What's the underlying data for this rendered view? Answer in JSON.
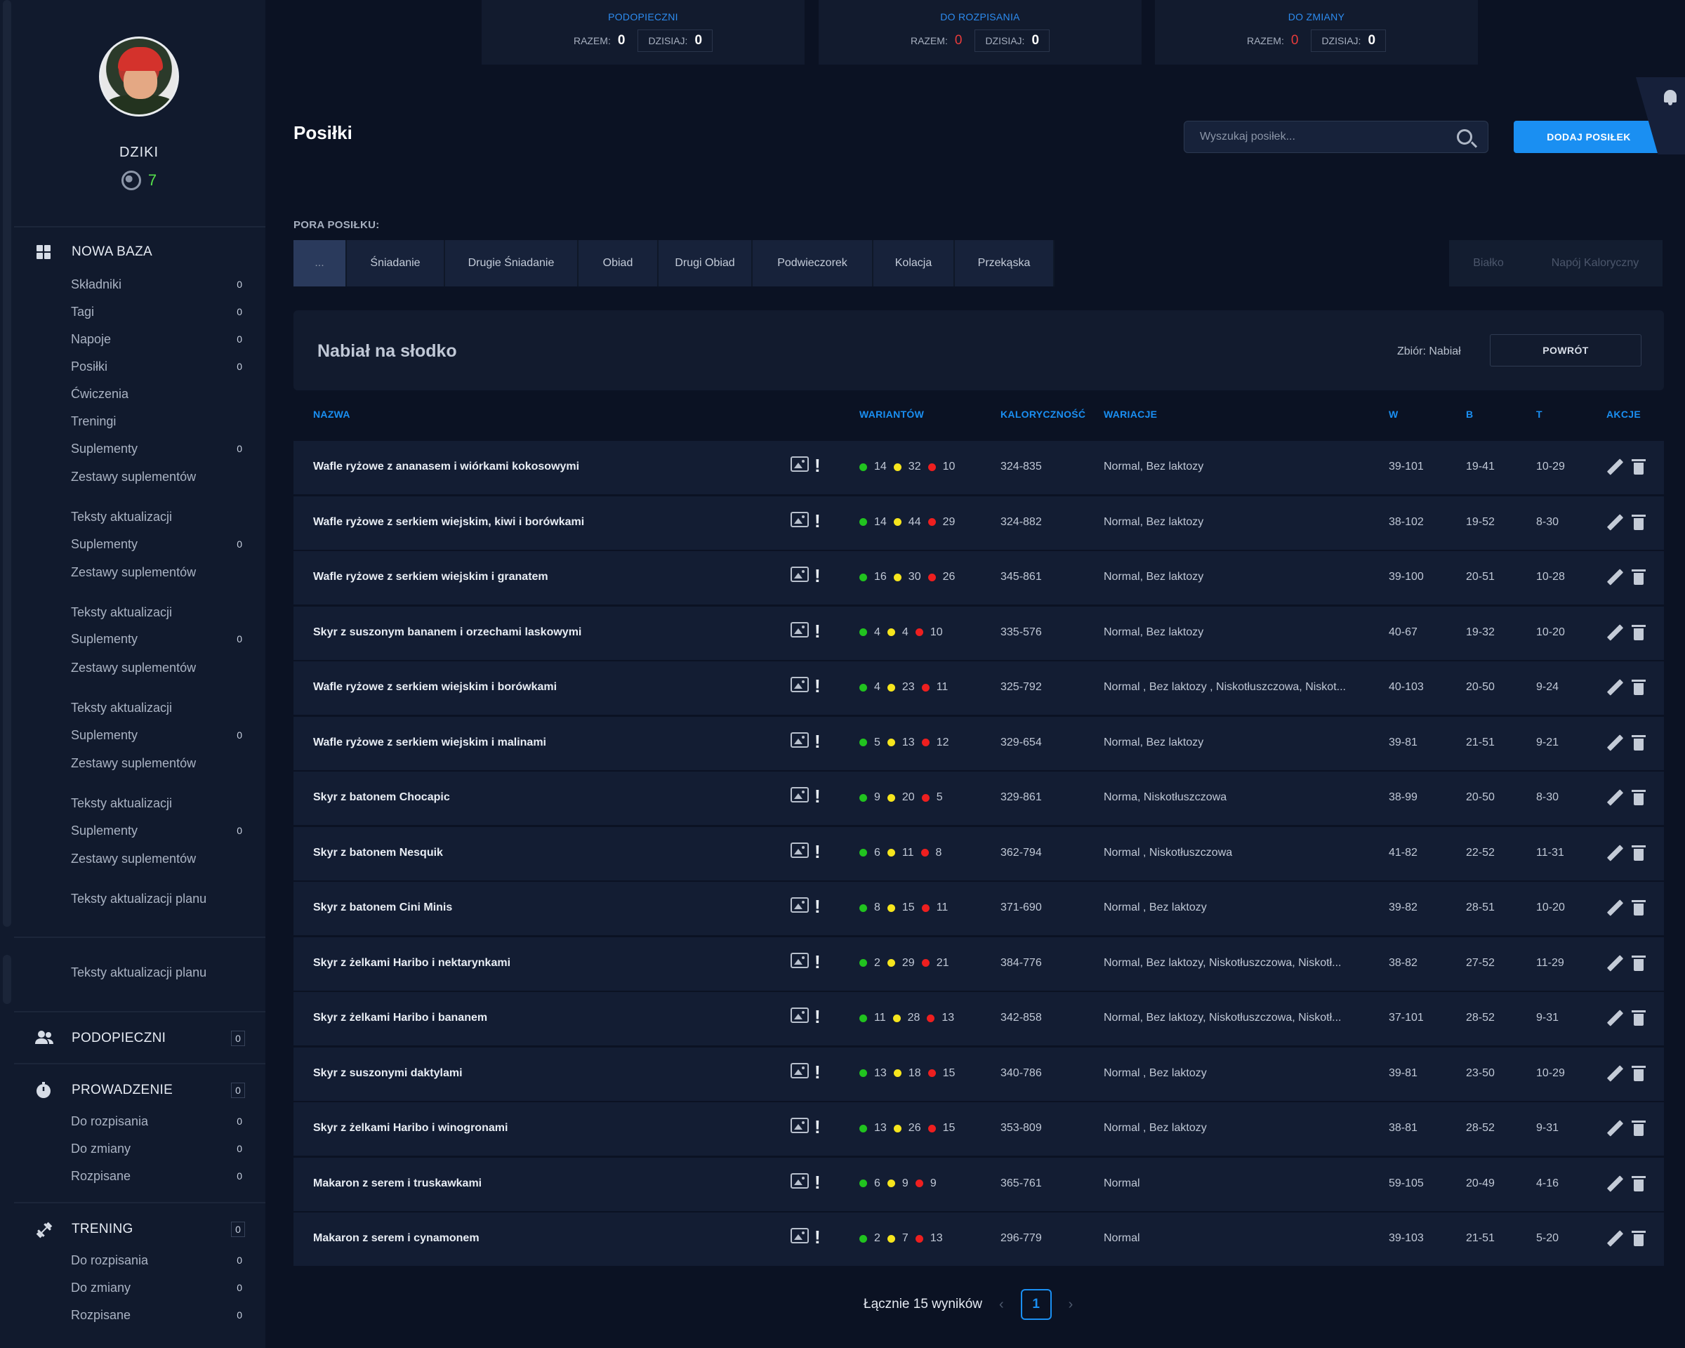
{
  "stats": [
    {
      "title": "PODOPIECZNI",
      "razem_label": "RAZEM:",
      "razem": "0",
      "razem_red": false,
      "dzisiaj_label": "DZISIAJ:",
      "dzisiaj": "0"
    },
    {
      "title": "DO ROZPISANIA",
      "razem_label": "RAZEM:",
      "razem": "0",
      "razem_red": true,
      "dzisiaj_label": "DZISIAJ:",
      "dzisiaj": "0"
    },
    {
      "title": "DO ZMIANY",
      "razem_label": "RAZEM:",
      "razem": "0",
      "razem_red": true,
      "dzisiaj_label": "DZISIAJ:",
      "dzisiaj": "0"
    }
  ],
  "profile": {
    "name": "DZIKI",
    "score": "7"
  },
  "sidebar": {
    "nowa_baza": {
      "label": "NOWA BAZA"
    },
    "items": [
      {
        "label": "Składniki",
        "count": "0"
      },
      {
        "label": "Tagi",
        "count": "0"
      },
      {
        "label": "Napoje",
        "count": "0"
      },
      {
        "label": "Posiłki",
        "count": "0"
      },
      {
        "label": "Ćwiczenia",
        "count": ""
      },
      {
        "label": "Treningi",
        "count": ""
      },
      {
        "label": "Suplementy",
        "count": "0"
      },
      {
        "label": "Zestawy suplementów",
        "count": ""
      },
      {
        "label": "Teksty aktualizacji",
        "count": ""
      },
      {
        "label": "Suplementy",
        "count": "0"
      },
      {
        "label": "Zestawy suplementów",
        "count": ""
      },
      {
        "label": "Teksty aktualizacji",
        "count": ""
      },
      {
        "label": "Suplementy",
        "count": "0"
      },
      {
        "label": "Zestawy suplementów",
        "count": ""
      },
      {
        "label": "Teksty aktualizacji",
        "count": ""
      },
      {
        "label": "Suplementy",
        "count": "0"
      },
      {
        "label": "Zestawy suplementów",
        "count": ""
      },
      {
        "label": "Teksty aktualizacji",
        "count": ""
      },
      {
        "label": "Suplementy",
        "count": "0"
      },
      {
        "label": "Zestawy suplementów",
        "count": ""
      },
      {
        "label": "Teksty aktualizacji planu",
        "count": ""
      }
    ],
    "extra_item": {
      "label": "Teksty aktualizacji planu"
    },
    "podopieczni": {
      "label": "PODOPIECZNI",
      "count": "0"
    },
    "prowadzenie": {
      "label": "PROWADZENIE",
      "count": "0",
      "items": [
        {
          "label": "Do rozpisania",
          "count": "0"
        },
        {
          "label": "Do zmiany",
          "count": "0"
        },
        {
          "label": "Rozpisane",
          "count": "0"
        }
      ]
    },
    "trening": {
      "label": "TRENING",
      "count": "0",
      "items": [
        {
          "label": "Do rozpisania",
          "count": "0"
        },
        {
          "label": "Do zmiany",
          "count": "0"
        },
        {
          "label": "Rozpisane",
          "count": "0"
        }
      ]
    }
  },
  "header": {
    "title": "Posiłki",
    "search_placeholder": "Wyszukaj posiłek...",
    "add_button": "DODAJ POSIŁEK"
  },
  "meal_times": {
    "label": "PORA POSIŁKU:",
    "tabs": [
      "...",
      "Śniadanie",
      "Drugie Śniadanie",
      "Obiad",
      "Drugi Obiad",
      "Podwieczorek",
      "Kolacja",
      "Przekąska"
    ],
    "right_tabs": [
      "Białko",
      "Napój Kaloryczny"
    ]
  },
  "collection": {
    "title": "Nabiał na słodko",
    "zbior": "Zbiór: Nabiał",
    "back_button": "POWRÓT"
  },
  "table": {
    "headers": {
      "name": "NAZWA",
      "variants": "WARIANTÓW",
      "kcal": "KALORYCZNOŚĆ",
      "wariacje": "WARIACJE",
      "w": "W",
      "b": "B",
      "t": "T",
      "actions": "AKCJE"
    },
    "rows": [
      {
        "name": "Wafle ryżowe z ananasem i wiórkami kokosowymi",
        "g": "14",
        "y": "32",
        "r": "10",
        "kcal": "324-835",
        "wariacje": "Normal, Bez laktozy",
        "w": "39-101",
        "b": "19-41",
        "t": "10-29"
      },
      {
        "name": "Wafle ryżowe z serkiem wiejskim, kiwi i borówkami",
        "g": "14",
        "y": "44",
        "r": "29",
        "kcal": "324-882",
        "wariacje": "Normal, Bez laktozy",
        "w": "38-102",
        "b": "19-52",
        "t": "8-30"
      },
      {
        "name": "Wafle ryżowe z serkiem wiejskim i granatem",
        "g": "16",
        "y": "30",
        "r": "26",
        "kcal": "345-861",
        "wariacje": "Normal, Bez laktozy",
        "w": "39-100",
        "b": "20-51",
        "t": "10-28"
      },
      {
        "name": "Skyr z suszonym bananem i orzechami laskowymi",
        "g": "4",
        "y": "4",
        "r": "10",
        "kcal": "335-576",
        "wariacje": "Normal, Bez laktozy",
        "w": "40-67",
        "b": "19-32",
        "t": "10-20"
      },
      {
        "name": "Wafle ryżowe z serkiem wiejskim i borówkami",
        "g": "4",
        "y": "23",
        "r": "11",
        "kcal": "325-792",
        "wariacje": "Normal , Bez laktozy , Niskotłuszczowa, Niskot...",
        "w": "40-103",
        "b": "20-50",
        "t": "9-24"
      },
      {
        "name": "Wafle ryżowe z serkiem wiejskim i malinami",
        "g": "5",
        "y": "13",
        "r": "12",
        "kcal": "329-654",
        "wariacje": "Normal, Bez laktozy",
        "w": "39-81",
        "b": "21-51",
        "t": "9-21"
      },
      {
        "name": "Skyr z batonem Chocapic",
        "g": "9",
        "y": "20",
        "r": "5",
        "kcal": "329-861",
        "wariacje": "Norma, Niskotłuszczowa",
        "w": "38-99",
        "b": "20-50",
        "t": "8-30"
      },
      {
        "name": "Skyr z batonem Nesquik",
        "g": "6",
        "y": "11",
        "r": "8",
        "kcal": "362-794",
        "wariacje": "Normal , Niskotłuszczowa",
        "w": "41-82",
        "b": "22-52",
        "t": "11-31"
      },
      {
        "name": "Skyr z batonem Cini Minis",
        "g": "8",
        "y": "15",
        "r": "11",
        "kcal": "371-690",
        "wariacje": "Normal , Bez laktozy",
        "w": "39-82",
        "b": "28-51",
        "t": "10-20"
      },
      {
        "name": "Skyr z żelkami Haribo i nektarynkami",
        "g": "2",
        "y": "29",
        "r": "21",
        "kcal": "384-776",
        "wariacje": "Normal, Bez laktozy, Niskotłuszczowa, Niskotł...",
        "w": "38-82",
        "b": "27-52",
        "t": "11-29"
      },
      {
        "name": "Skyr z żelkami Haribo i bananem",
        "g": "11",
        "y": "28",
        "r": "13",
        "kcal": "342-858",
        "wariacje": "Normal, Bez laktozy, Niskotłuszczowa, Niskotł...",
        "w": "37-101",
        "b": "28-52",
        "t": "9-31"
      },
      {
        "name": "Skyr z suszonymi daktylami",
        "g": "13",
        "y": "18",
        "r": "15",
        "kcal": "340-786",
        "wariacje": "Normal , Bez laktozy",
        "w": "39-81",
        "b": "23-50",
        "t": "10-29"
      },
      {
        "name": "Skyr z żelkami Haribo i winogronami",
        "g": "13",
        "y": "26",
        "r": "15",
        "kcal": "353-809",
        "wariacje": "Normal , Bez laktozy",
        "w": "38-81",
        "b": "28-52",
        "t": "9-31"
      },
      {
        "name": "Makaron z serem i truskawkami",
        "g": "6",
        "y": "9",
        "r": "9",
        "kcal": "365-761",
        "wariacje": "Normal",
        "w": "59-105",
        "b": "20-49",
        "t": "4-16"
      },
      {
        "name": "Makaron z serem i cynamonem",
        "g": "2",
        "y": "7",
        "r": "13",
        "kcal": "296-779",
        "wariacje": "Normal",
        "w": "39-103",
        "b": "21-51",
        "t": "5-20"
      }
    ]
  },
  "pagination": {
    "total": "Łącznie 15 wyników",
    "page": "1",
    "prev": "‹",
    "next": "›"
  }
}
